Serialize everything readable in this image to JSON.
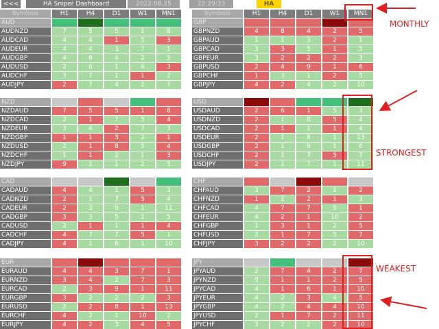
{
  "toolbar": {
    "back_label": "<<<",
    "title": "HA  Sniper  Dashboard",
    "date": "2022.08.25",
    "time": "22:29:33",
    "mode": "HA"
  },
  "columns": [
    "Symbols",
    "H1",
    "H4",
    "D1",
    "W1",
    "MN1"
  ],
  "colors": {
    "bull": "#a8dba2",
    "bear": "#e06a6a",
    "strong_bull": "#44c07c",
    "strong_bear": "#8c0a0a",
    "neutral": "#c8c8c8",
    "annotation": "#e02020"
  },
  "panels": [
    {
      "name": "AUD",
      "header_colors": [
        "G",
        "DG",
        "G",
        "G",
        "G"
      ],
      "rows": [
        {
          "symbol": "AUDNZD",
          "values": [
            7,
            5,
            5,
            1,
            8
          ],
          "colors": [
            "g",
            "g",
            "g",
            "g",
            "g"
          ]
        },
        {
          "symbol": "AUDCAD",
          "values": [
            4,
            4,
            1,
            5,
            3
          ],
          "colors": [
            "g",
            "g",
            "r",
            "g",
            "r"
          ]
        },
        {
          "symbol": "AUDEUR",
          "values": [
            4,
            4,
            3,
            7,
            1
          ],
          "colors": [
            "g",
            "g",
            "g",
            "g",
            "g"
          ]
        },
        {
          "symbol": "AUDGBP",
          "values": [
            4,
            8,
            4,
            2,
            5
          ],
          "colors": [
            "g",
            "g",
            "g",
            "g",
            "g"
          ]
        },
        {
          "symbol": "AUDUSD",
          "values": [
            2,
            6,
            1,
            6,
            3
          ],
          "colors": [
            "g",
            "g",
            "g",
            "g",
            "r"
          ]
        },
        {
          "symbol": "AUDCHF",
          "values": [
            3,
            7,
            1,
            1,
            2
          ],
          "colors": [
            "g",
            "g",
            "g",
            "r",
            "g"
          ]
        },
        {
          "symbol": "AUDJPY",
          "values": [
            2,
            7,
            4,
            2,
            7
          ],
          "colors": [
            "r",
            "g",
            "g",
            "g",
            "g"
          ]
        }
      ]
    },
    {
      "name": "GBP",
      "header_colors": [
        "R",
        "R",
        "R",
        "DR",
        "R"
      ],
      "rows": [
        {
          "symbol": "GBPNZD",
          "values": [
            4,
            8,
            4,
            2,
            5
          ],
          "colors": [
            "r",
            "r",
            "r",
            "r",
            "r"
          ]
        },
        {
          "symbol": "GBPAUD",
          "values": [
            1,
            1,
            3,
            2,
            1
          ],
          "colors": [
            "g",
            "g",
            "g",
            "r",
            "g"
          ]
        },
        {
          "symbol": "GBPCAD",
          "values": [
            3,
            3,
            5,
            1,
            5
          ],
          "colors": [
            "g",
            "r",
            "g",
            "r",
            "g"
          ]
        },
        {
          "symbol": "GBPEUR",
          "values": [
            3,
            2,
            2,
            2,
            3
          ],
          "colors": [
            "g",
            "r",
            "r",
            "r",
            "g"
          ]
        },
        {
          "symbol": "GBPUSD",
          "values": [
            2,
            4,
            9,
            1,
            6
          ],
          "colors": [
            "r",
            "r",
            "r",
            "r",
            "r"
          ]
        },
        {
          "symbol": "GBPCHF",
          "values": [
            1,
            3,
            1,
            2,
            5
          ],
          "colors": [
            "r",
            "g",
            "g",
            "r",
            "g"
          ]
        },
        {
          "symbol": "GBPJPY",
          "values": [
            4,
            2,
            4,
            2,
            10
          ],
          "colors": [
            "r",
            "r",
            "g",
            "g",
            "g"
          ]
        }
      ]
    },
    {
      "name": "NZD",
      "header_colors": [
        "N",
        "R",
        "N",
        "G",
        "R"
      ],
      "rows": [
        {
          "symbol": "NZDAUD",
          "values": [
            7,
            5,
            5,
            1,
            8
          ],
          "colors": [
            "r",
            "r",
            "r",
            "r",
            "r"
          ]
        },
        {
          "symbol": "NZDCAD",
          "values": [
            2,
            1,
            7,
            5,
            4
          ],
          "colors": [
            "g",
            "r",
            "g",
            "g",
            "r"
          ]
        },
        {
          "symbol": "NZDEUR",
          "values": [
            3,
            4,
            2,
            7,
            3
          ],
          "colors": [
            "g",
            "g",
            "r",
            "g",
            "g"
          ]
        },
        {
          "symbol": "NZDGBP",
          "values": [
            1,
            1,
            3,
            2,
            1
          ],
          "colors": [
            "r",
            "r",
            "r",
            "g",
            "r"
          ]
        },
        {
          "symbol": "NZDUSD",
          "values": [
            2,
            1,
            8,
            5,
            4
          ],
          "colors": [
            "g",
            "r",
            "r",
            "g",
            "r"
          ]
        },
        {
          "symbol": "NZDCHF",
          "values": [
            1,
            1,
            2,
            1,
            3
          ],
          "colors": [
            "g",
            "r",
            "g",
            "g",
            "r"
          ]
        },
        {
          "symbol": "NZDJPY",
          "values": [
            9,
            1,
            1,
            2,
            5
          ],
          "colors": [
            "r",
            "g",
            "g",
            "g",
            "g"
          ]
        }
      ]
    },
    {
      "name": "USD",
      "header_colors": [
        "DR",
        "R",
        "G",
        "G",
        "DG"
      ],
      "rows": [
        {
          "symbol": "USDAUD",
          "values": [
            2,
            6,
            1,
            5,
            3
          ],
          "colors": [
            "r",
            "r",
            "r",
            "g",
            "g"
          ]
        },
        {
          "symbol": "USDNZD",
          "values": [
            2,
            1,
            8,
            5,
            4
          ],
          "colors": [
            "r",
            "g",
            "g",
            "r",
            "g"
          ]
        },
        {
          "symbol": "USDCAD",
          "values": [
            2,
            1,
            1,
            1,
            4
          ],
          "colors": [
            "r",
            "r",
            "g",
            "r",
            "g"
          ]
        },
        {
          "symbol": "USDEUR",
          "values": [
            2,
            1,
            8,
            1,
            13
          ],
          "colors": [
            "r",
            "g",
            "g",
            "g",
            "g"
          ]
        },
        {
          "symbol": "USDGBP",
          "values": [
            2,
            1,
            9,
            1,
            6
          ],
          "colors": [
            "r",
            "g",
            "g",
            "g",
            "g"
          ]
        },
        {
          "symbol": "USDCHF",
          "values": [
            2,
            1,
            7,
            5,
            7
          ],
          "colors": [
            "r",
            "g",
            "g",
            "r",
            "g"
          ]
        },
        {
          "symbol": "USDJPY",
          "values": [
            2,
            1,
            7,
            1,
            11
          ],
          "colors": [
            "r",
            "g",
            "g",
            "g",
            "g"
          ]
        }
      ]
    },
    {
      "name": "CAD",
      "header_colors": [
        "N",
        "N",
        "DG",
        "N",
        "G"
      ],
      "rows": [
        {
          "symbol": "CADAUD",
          "values": [
            4,
            4,
            1,
            5,
            3
          ],
          "colors": [
            "r",
            "g",
            "g",
            "r",
            "g"
          ]
        },
        {
          "symbol": "CADNZD",
          "values": [
            2,
            1,
            7,
            5,
            4
          ],
          "colors": [
            "r",
            "g",
            "g",
            "r",
            "g"
          ]
        },
        {
          "symbol": "CADEUR",
          "values": [
            2,
            3,
            9,
            1,
            11
          ],
          "colors": [
            "r",
            "g",
            "g",
            "g",
            "g"
          ]
        },
        {
          "symbol": "CADGBP",
          "values": [
            3,
            3,
            5,
            1,
            5
          ],
          "colors": [
            "r",
            "g",
            "g",
            "g",
            "g"
          ]
        },
        {
          "symbol": "CADUSD",
          "values": [
            2,
            1,
            1,
            1,
            4
          ],
          "colors": [
            "g",
            "r",
            "g",
            "r",
            "r"
          ]
        },
        {
          "symbol": "CADCHF",
          "values": [
            4,
            7,
            7,
            5,
            1
          ],
          "colors": [
            "r",
            "g",
            "g",
            "r",
            "g"
          ]
        },
        {
          "symbol": "CADJPY",
          "values": [
            4,
            1,
            6,
            1,
            10
          ],
          "colors": [
            "r",
            "g",
            "g",
            "g",
            "g"
          ]
        }
      ]
    },
    {
      "name": "CHF",
      "header_colors": [
        "R",
        "N",
        "DR",
        "R",
        "N"
      ],
      "rows": [
        {
          "symbol": "CHFAUD",
          "values": [
            3,
            7,
            2,
            1,
            2
          ],
          "colors": [
            "g",
            "r",
            "r",
            "g",
            "r"
          ]
        },
        {
          "symbol": "CHFNZD",
          "values": [
            1,
            1,
            2,
            1,
            3
          ],
          "colors": [
            "r",
            "g",
            "r",
            "r",
            "g"
          ]
        },
        {
          "symbol": "CHFCAD",
          "values": [
            4,
            7,
            7,
            5,
            1
          ],
          "colors": [
            "g",
            "r",
            "r",
            "g",
            "r"
          ]
        },
        {
          "symbol": "CHFEUR",
          "values": [
            4,
            2,
            1,
            10,
            2
          ],
          "colors": [
            "g",
            "r",
            "r",
            "g",
            "r"
          ]
        },
        {
          "symbol": "CHFGBP",
          "values": [
            1,
            3,
            1,
            2,
            5
          ],
          "colors": [
            "g",
            "r",
            "r",
            "g",
            "r"
          ]
        },
        {
          "symbol": "CHFUSD",
          "values": [
            2,
            1,
            7,
            5,
            7
          ],
          "colors": [
            "g",
            "r",
            "r",
            "g",
            "r"
          ]
        },
        {
          "symbol": "CHFJPY",
          "values": [
            3,
            2,
            2,
            2,
            10
          ],
          "colors": [
            "r",
            "r",
            "r",
            "g",
            "g"
          ]
        }
      ]
    },
    {
      "name": "EUR",
      "header_colors": [
        "R",
        "DR",
        "R",
        "R",
        "R"
      ],
      "rows": [
        {
          "symbol": "EURAUD",
          "values": [
            4,
            4,
            3,
            7,
            1
          ],
          "colors": [
            "r",
            "r",
            "r",
            "r",
            "r"
          ]
        },
        {
          "symbol": "EURNZD",
          "values": [
            3,
            4,
            2,
            7,
            3
          ],
          "colors": [
            "r",
            "r",
            "g",
            "r",
            "r"
          ]
        },
        {
          "symbol": "EURCAD",
          "values": [
            2,
            3,
            9,
            1,
            11
          ],
          "colors": [
            "g",
            "r",
            "r",
            "r",
            "r"
          ]
        },
        {
          "symbol": "EURGBP",
          "values": [
            3,
            2,
            2,
            2,
            3
          ],
          "colors": [
            "r",
            "g",
            "g",
            "g",
            "r"
          ]
        },
        {
          "symbol": "EURUSD",
          "values": [
            2,
            2,
            8,
            1,
            13
          ],
          "colors": [
            "g",
            "r",
            "r",
            "r",
            "r"
          ]
        },
        {
          "symbol": "EURCHF",
          "values": [
            4,
            2,
            1,
            10,
            2
          ],
          "colors": [
            "r",
            "g",
            "g",
            "r",
            "g"
          ]
        },
        {
          "symbol": "EURJPY",
          "values": [
            4,
            2,
            3,
            4,
            5
          ],
          "colors": [
            "r",
            "r",
            "g",
            "r",
            "r"
          ]
        }
      ]
    },
    {
      "name": "JPY",
      "header_colors": [
        "N",
        "G",
        "N",
        "N",
        "DR"
      ],
      "rows": [
        {
          "symbol": "JPYAUD",
          "values": [
            2,
            7,
            4,
            2,
            7
          ],
          "colors": [
            "g",
            "r",
            "r",
            "r",
            "r"
          ]
        },
        {
          "symbol": "JPYNZD",
          "values": [
            9,
            1,
            1,
            2,
            5
          ],
          "colors": [
            "g",
            "r",
            "r",
            "r",
            "r"
          ]
        },
        {
          "symbol": "JPYCAD",
          "values": [
            4,
            1,
            6,
            1,
            10
          ],
          "colors": [
            "g",
            "r",
            "r",
            "r",
            "r"
          ]
        },
        {
          "symbol": "JPYEUR",
          "values": [
            4,
            2,
            3,
            4,
            5
          ],
          "colors": [
            "g",
            "g",
            "r",
            "g",
            "r"
          ]
        },
        {
          "symbol": "JPYGBP",
          "values": [
            4,
            2,
            4,
            4,
            10
          ],
          "colors": [
            "g",
            "g",
            "r",
            "r",
            "r"
          ]
        },
        {
          "symbol": "JPYUSD",
          "values": [
            2,
            1,
            7,
            2,
            11
          ],
          "colors": [
            "g",
            "r",
            "r",
            "r",
            "r"
          ]
        },
        {
          "symbol": "JPYCHF",
          "values": [
            3,
            2,
            2,
            2,
            10
          ],
          "colors": [
            "g",
            "g",
            "g",
            "r",
            "r"
          ]
        }
      ]
    }
  ],
  "annotations": {
    "monthly": "MONTHLY",
    "strongest": "STRONGEST",
    "weakest": "WEAKEST"
  }
}
